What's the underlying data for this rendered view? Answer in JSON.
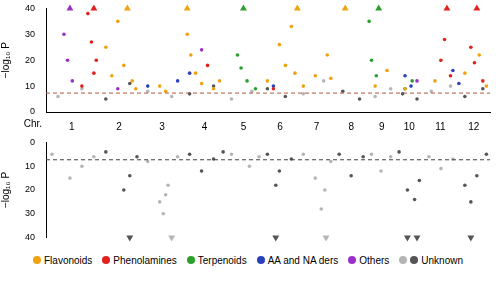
{
  "chart_data": [
    {
      "type": "scatter",
      "ylabel": "−log₁₀ P",
      "xlabel": "Chr.",
      "legend": "bottom",
      "grid": false,
      "xlim": [
        0,
        371
      ],
      "ylim": [
        0,
        40
      ],
      "yticks": [
        0,
        10,
        20,
        30,
        40
      ],
      "threshold": 7.3,
      "chromosomes": {
        "labels": [
          "1",
          "2",
          "3",
          "4",
          "5",
          "6",
          "7",
          "8",
          "9",
          "10",
          "11",
          "12"
        ],
        "bounds": [
          0,
          43,
          79,
          115,
          150,
          180,
          211,
          241,
          269,
          292,
          315,
          344,
          371
        ]
      },
      "series": [
        {
          "name": "Flavonoids",
          "color": "#f2a20c",
          "x": [
            50,
            55,
            60,
            65,
            72,
            75,
            95,
            100,
            118,
            121,
            125,
            130,
            140,
            145,
            185,
            195,
            200,
            205,
            208,
            215,
            225,
            235,
            238,
            275,
            285,
            300,
            325,
            350,
            362,
            368
          ],
          "values": [
            25,
            14,
            35,
            18,
            12,
            9,
            10,
            8,
            30,
            22,
            15,
            11,
            9,
            12,
            12,
            26,
            18,
            33,
            15,
            10,
            14,
            22,
            13,
            10,
            16,
            9,
            12,
            15,
            22,
            10
          ],
          "overflow_x": [
            68,
            118,
            210,
            250
          ]
        },
        {
          "name": "Phenolamines",
          "color": "#e3201b",
          "x": [
            30,
            35,
            38,
            40,
            42,
            135,
            190,
            330,
            333,
            338,
            355,
            358,
            365
          ],
          "values": [
            10,
            38,
            27,
            15,
            20,
            18,
            9,
            20,
            28,
            14,
            25,
            19,
            12
          ],
          "overflow_x": [
            40,
            335,
            360
          ]
        },
        {
          "name": "Terpenoids",
          "color": "#2ca02c",
          "x": [
            160,
            163,
            168,
            175,
            270,
            272,
            276,
            300,
            306
          ],
          "values": [
            22,
            17,
            12,
            9,
            35,
            20,
            14,
            9,
            12
          ],
          "overflow_x": [
            165,
            278
          ]
        },
        {
          "name": "AA and NA ders",
          "color": "#2b3fbf",
          "x": [
            85,
            110,
            120,
            190,
            300,
            305,
            340,
            345
          ],
          "values": [
            10,
            12,
            15,
            10,
            14,
            10,
            16,
            11
          ]
        },
        {
          "name": "Others",
          "color": "#9b2fc9",
          "x": [
            15,
            18,
            22,
            60,
            130,
            310
          ],
          "values": [
            30,
            20,
            12,
            9,
            24,
            12
          ],
          "overflow_x": [
            20
          ]
        },
        {
          "name": "Unknown",
          "colors": [
            "#b5b5b5",
            "#555555"
          ],
          "x": [
            10,
            30,
            50,
            70,
            85,
            105,
            120,
            140,
            155,
            172,
            185,
            200,
            215,
            232,
            248,
            262,
            275,
            288,
            298,
            310,
            322,
            338,
            350,
            365
          ],
          "values": [
            6,
            9,
            5,
            11,
            8,
            6,
            7,
            10,
            5,
            8,
            9,
            6,
            7,
            12,
            8,
            5,
            6,
            9,
            7,
            5,
            8,
            10,
            6,
            9
          ]
        }
      ]
    },
    {
      "type": "scatter",
      "ylabel": "−log₁₀ P",
      "grid": false,
      "tick_labels": "y",
      "xlim": [
        0,
        371
      ],
      "ylim": [
        40,
        0
      ],
      "yticks": [
        0,
        10,
        20,
        30,
        40
      ],
      "threshold": 7.3,
      "series": [
        {
          "name": "Unknown",
          "colors": [
            "#b5b5b5",
            "#555555"
          ],
          "x": [
            5,
            20,
            30,
            40,
            50,
            65,
            70,
            76,
            85,
            95,
            98,
            100,
            102,
            110,
            120,
            130,
            140,
            148,
            155,
            170,
            178,
            185,
            192,
            195,
            205,
            215,
            225,
            230,
            233,
            238,
            245,
            255,
            265,
            272,
            280,
            288,
            295,
            302,
            308,
            312,
            320,
            330,
            340,
            350,
            355,
            360,
            368
          ],
          "values": [
            5,
            15,
            10,
            6,
            4,
            20,
            14,
            6,
            8,
            25,
            30,
            22,
            18,
            6,
            5,
            12,
            7,
            4,
            5,
            10,
            6,
            5,
            18,
            12,
            7,
            5,
            15,
            28,
            20,
            8,
            5,
            14,
            6,
            5,
            12,
            6,
            4,
            20,
            24,
            16,
            6,
            11,
            7,
            18,
            25,
            14,
            5
          ],
          "overflow_x": [
            70,
            105,
            192,
            234,
            302,
            310,
            355
          ]
        }
      ]
    }
  ]
}
